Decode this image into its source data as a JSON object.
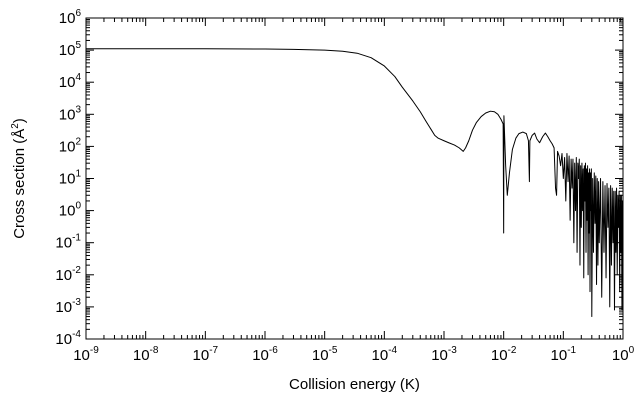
{
  "chart_data": {
    "type": "line",
    "xlabel": "Collision energy (K)",
    "ylabel": "Cross section (Å²)",
    "ylabel_parts": {
      "pre": "Cross section (",
      "base": "Å",
      "sup": "2",
      "post": ")"
    },
    "x_scale": "log",
    "y_scale": "log",
    "xlim": [
      1e-09,
      1
    ],
    "ylim": [
      0.0001,
      1000000.0
    ],
    "x_tick_labels": [
      {
        "base": "10",
        "exp": "-9"
      },
      {
        "base": "10",
        "exp": "-8"
      },
      {
        "base": "10",
        "exp": "-7"
      },
      {
        "base": "10",
        "exp": "-6"
      },
      {
        "base": "10",
        "exp": "-5"
      },
      {
        "base": "10",
        "exp": "-4"
      },
      {
        "base": "10",
        "exp": "-3"
      },
      {
        "base": "10",
        "exp": "-2"
      },
      {
        "base": "10",
        "exp": "-1"
      },
      {
        "base": "10",
        "exp": "0"
      }
    ],
    "y_tick_labels": [
      {
        "base": "10",
        "exp": "-4"
      },
      {
        "base": "10",
        "exp": "-3"
      },
      {
        "base": "10",
        "exp": "-2"
      },
      {
        "base": "10",
        "exp": "-1"
      },
      {
        "base": "10",
        "exp": "0"
      },
      {
        "base": "10",
        "exp": "1"
      },
      {
        "base": "10",
        "exp": "2"
      },
      {
        "base": "10",
        "exp": "3"
      },
      {
        "base": "10",
        "exp": "4"
      },
      {
        "base": "10",
        "exp": "5"
      },
      {
        "base": "10",
        "exp": "6"
      }
    ],
    "grid": false,
    "legend": "none",
    "line_color": "#000000",
    "series": [
      {
        "points": [
          [
            1e-09,
            110000.0
          ],
          [
            1e-07,
            110000.0
          ],
          [
            1e-06,
            108000.0
          ],
          [
            3e-06,
            105000.0
          ],
          [
            1e-05,
            100000.0
          ],
          [
            2e-05,
            92000.0
          ],
          [
            3.5e-05,
            80000.0
          ],
          [
            6e-05,
            58000.0
          ],
          [
            0.0001,
            32000.0
          ],
          [
            0.00015,
            15000.0
          ],
          [
            0.0002,
            7000.0
          ],
          [
            0.0003,
            2600.0
          ],
          [
            0.0004,
            1200.0
          ],
          [
            0.0005,
            600
          ],
          [
            0.0006,
            350
          ],
          [
            0.0007,
            220
          ],
          [
            0.0008,
            180
          ],
          [
            0.001,
            150
          ],
          [
            0.0012,
            130
          ],
          [
            0.0015,
            110
          ],
          [
            0.0018,
            90
          ],
          [
            0.0021,
            70
          ],
          [
            0.0023,
            90
          ],
          [
            0.0026,
            150
          ],
          [
            0.003,
            320
          ],
          [
            0.0035,
            560
          ],
          [
            0.0042,
            850
          ],
          [
            0.005,
            1100
          ],
          [
            0.006,
            1250
          ],
          [
            0.007,
            1200
          ],
          [
            0.008,
            1000
          ],
          [
            0.009,
            700
          ],
          [
            0.0098,
            500
          ],
          [
            0.01,
            0.2
          ],
          [
            0.0101,
            900
          ],
          [
            0.0108,
            25
          ],
          [
            0.0115,
            3
          ],
          [
            0.0125,
            15
          ],
          [
            0.014,
            80
          ],
          [
            0.016,
            180
          ],
          [
            0.018,
            250
          ],
          [
            0.021,
            280
          ],
          [
            0.024,
            250
          ],
          [
            0.026,
            150
          ],
          [
            0.027,
            8
          ],
          [
            0.0275,
            150
          ],
          [
            0.03,
            220
          ],
          [
            0.033,
            260
          ],
          [
            0.036,
            170
          ],
          [
            0.04,
            130
          ],
          [
            0.045,
            200
          ],
          [
            0.05,
            260
          ],
          [
            0.055,
            200
          ],
          [
            0.06,
            150
          ],
          [
            0.065,
            120
          ],
          [
            0.07,
            90
          ],
          [
            0.074,
            5
          ],
          [
            0.077,
            3
          ],
          [
            0.08,
            70
          ],
          [
            0.085,
            50
          ],
          [
            0.09,
            25
          ],
          [
            0.095,
            60
          ],
          [
            0.1,
            10
          ],
          [
            0.105,
            45
          ],
          [
            0.11,
            2
          ],
          [
            0.115,
            60
          ],
          [
            0.12,
            8
          ],
          [
            0.125,
            50
          ],
          [
            0.13,
            0.5
          ],
          [
            0.135,
            40
          ],
          [
            0.14,
            5
          ],
          [
            0.145,
            40
          ],
          [
            0.15,
            0.1
          ],
          [
            0.155,
            30
          ],
          [
            0.16,
            1
          ],
          [
            0.165,
            45
          ],
          [
            0.17,
            0.05
          ],
          [
            0.175,
            30
          ],
          [
            0.18,
            10
          ],
          [
            0.185,
            40
          ],
          [
            0.19,
            0.02
          ],
          [
            0.195,
            25
          ],
          [
            0.2,
            0.3
          ],
          [
            0.205,
            30
          ],
          [
            0.21,
            1
          ],
          [
            0.215,
            20
          ],
          [
            0.22,
            0.008
          ],
          [
            0.225,
            25
          ],
          [
            0.23,
            2
          ],
          [
            0.235,
            30
          ],
          [
            0.24,
            0.05
          ],
          [
            0.245,
            20
          ],
          [
            0.25,
            0.5
          ],
          [
            0.255,
            25
          ],
          [
            0.26,
            0.01
          ],
          [
            0.265,
            15
          ],
          [
            0.27,
            0.2
          ],
          [
            0.275,
            20
          ],
          [
            0.28,
            0.003
          ],
          [
            0.285,
            15
          ],
          [
            0.29,
            1
          ],
          [
            0.295,
            20
          ],
          [
            0.3,
            0.0005
          ],
          [
            0.31,
            10
          ],
          [
            0.32,
            0.05
          ],
          [
            0.33,
            15
          ],
          [
            0.34,
            0.4
          ],
          [
            0.35,
            12
          ],
          [
            0.36,
            0.005
          ],
          [
            0.37,
            10
          ],
          [
            0.38,
            0.02
          ],
          [
            0.39,
            8
          ],
          [
            0.4,
            0.1
          ],
          [
            0.42,
            10
          ],
          [
            0.44,
            0.002
          ],
          [
            0.46,
            8
          ],
          [
            0.48,
            0.05
          ],
          [
            0.5,
            6
          ],
          [
            0.52,
            0.008
          ],
          [
            0.54,
            7
          ],
          [
            0.56,
            0.3
          ],
          [
            0.58,
            5
          ],
          [
            0.6,
            0.001
          ],
          [
            0.62,
            6
          ],
          [
            0.64,
            0.02
          ],
          [
            0.66,
            5
          ],
          [
            0.68,
            0.1
          ],
          [
            0.7,
            4
          ],
          [
            0.72,
            0.0008
          ],
          [
            0.74,
            4
          ],
          [
            0.76,
            0.05
          ],
          [
            0.78,
            5
          ],
          [
            0.8,
            0.01
          ],
          [
            0.82,
            3
          ],
          [
            0.84,
            0.3
          ],
          [
            0.86,
            4
          ],
          [
            0.88,
            0.003
          ],
          [
            0.9,
            3
          ],
          [
            0.92,
            0.05
          ],
          [
            0.94,
            3
          ],
          [
            0.96,
            0.0008
          ],
          [
            0.98,
            2
          ],
          [
            1.0,
            0.5
          ]
        ]
      }
    ]
  }
}
